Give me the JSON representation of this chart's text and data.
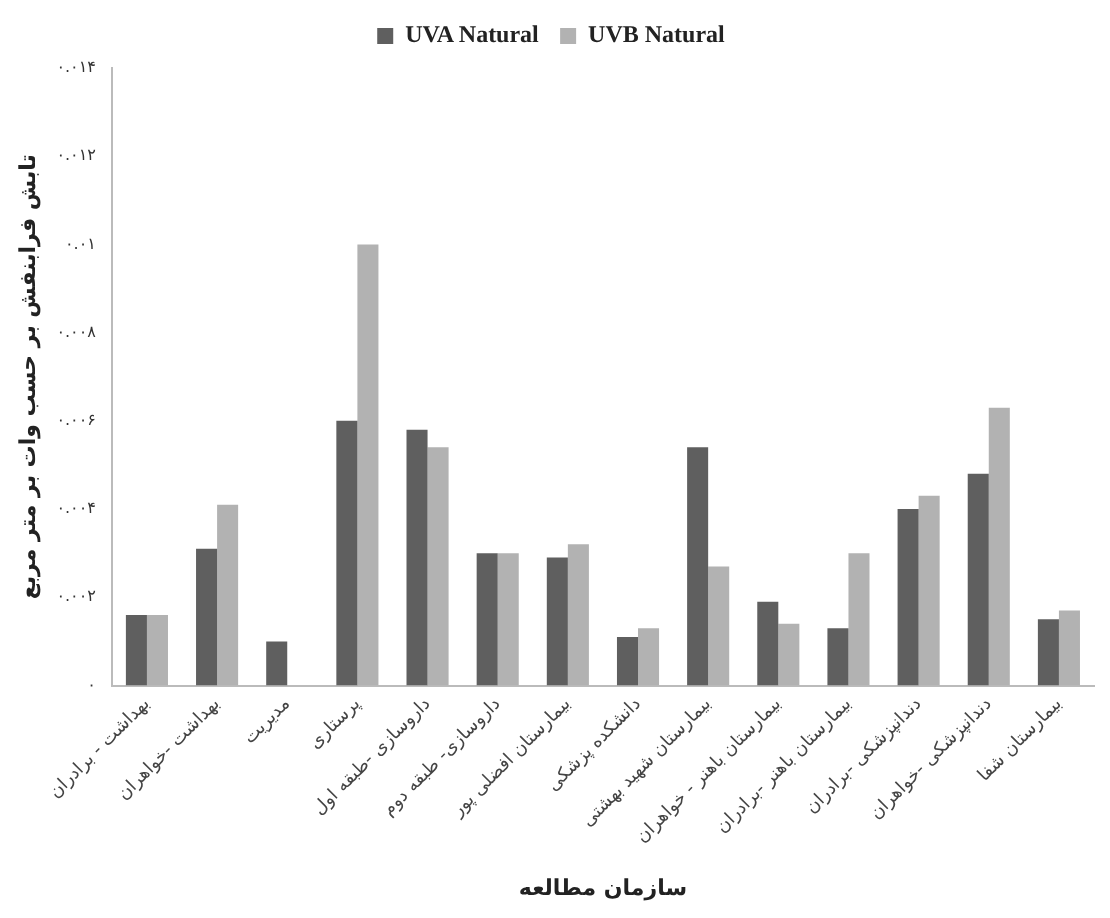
{
  "chart_data": {
    "type": "bar",
    "categories": [
      "بهداشت - برادران",
      "بهداشت -خواهران",
      "مدیریت",
      "پرستاری",
      "داروسازی -طبقه اول",
      "داروسازی- طبقه دوم",
      "بیمارستان افضلی پور",
      "دانشکده پزشکی",
      "بیمارستان شهید بهشتی",
      "بیمارستان باهنر - خواهران",
      "بیمارستان باهنر -برادران",
      "دندانپزشکی -برادران",
      "دندانپزشکی -خواهران",
      "بیمارستان شفا"
    ],
    "series": [
      {
        "name": "UVA Natural",
        "color": "#5f5f5f",
        "values": [
          0.0016,
          0.0031,
          0.001,
          0.006,
          0.0058,
          0.003,
          0.0029,
          0.0011,
          0.0054,
          0.0019,
          0.0013,
          0.004,
          0.0048,
          0.0015
        ]
      },
      {
        "name": "UVB Natural",
        "color": "#b2b2b2",
        "values": [
          0.0016,
          0.0041,
          null,
          0.01,
          0.0054,
          0.003,
          0.0032,
          0.0013,
          0.0027,
          0.0014,
          0.003,
          0.0043,
          0.0063,
          0.0017
        ]
      }
    ],
    "xlabel": "سازمان مطالعه",
    "ylabel": "تابش فرابنفش بر حسب وات بر متر مربع",
    "ylim": [
      0,
      0.014
    ],
    "yticks": [
      {
        "value": 0,
        "label": "۰"
      },
      {
        "value": 0.002,
        "label": "۰.۰۰۲"
      },
      {
        "value": 0.004,
        "label": "۰.۰۰۴"
      },
      {
        "value": 0.006,
        "label": "۰.۰۰۶"
      },
      {
        "value": 0.008,
        "label": "۰.۰۰۸"
      },
      {
        "value": 0.01,
        "label": "۰.۰۱"
      },
      {
        "value": 0.012,
        "label": "۰.۰۱۲"
      },
      {
        "value": 0.014,
        "label": "۰.۰۱۴"
      }
    ],
    "grid": false,
    "legend": "top"
  }
}
